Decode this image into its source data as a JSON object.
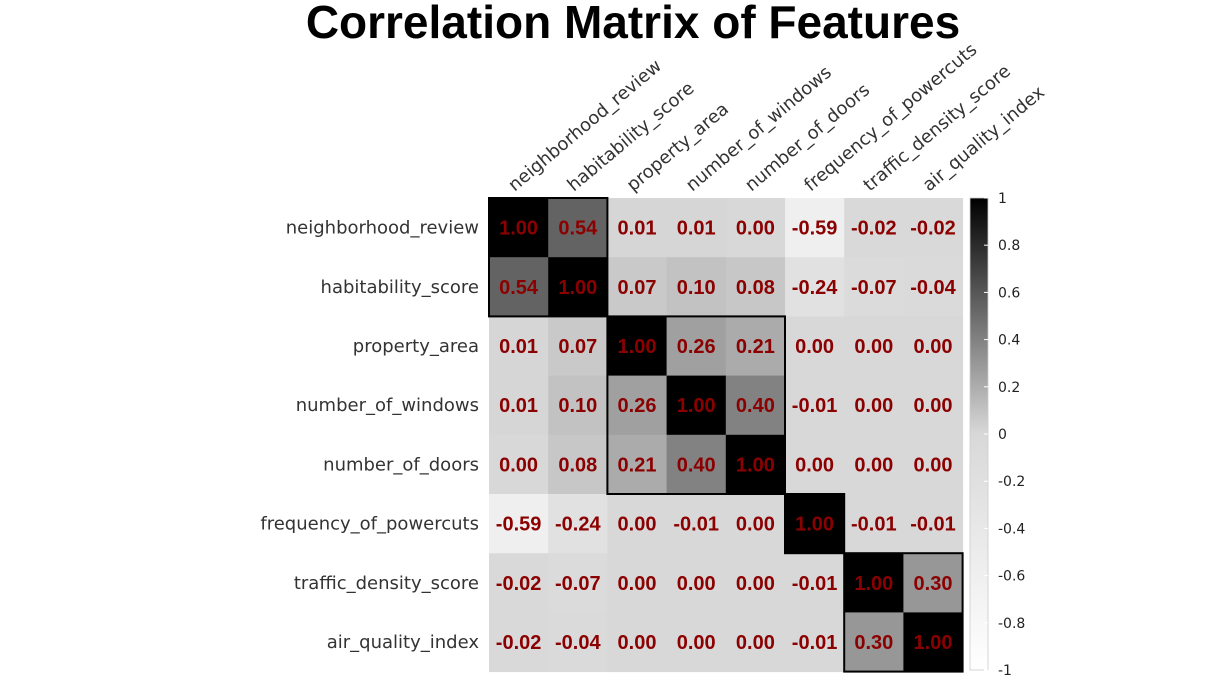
{
  "chart_data": {
    "type": "heatmap",
    "title": "Correlation Matrix of Features",
    "labels": [
      "neighborhood_review",
      "habitability_score",
      "property_area",
      "number_of_windows",
      "number_of_doors",
      "frequency_of_powercuts",
      "traffic_density_score",
      "air_quality_index"
    ],
    "values": [
      [
        1.0,
        0.54,
        0.01,
        0.01,
        0.0,
        -0.59,
        -0.02,
        -0.02
      ],
      [
        0.54,
        1.0,
        0.07,
        0.1,
        0.08,
        -0.24,
        -0.07,
        -0.04
      ],
      [
        0.01,
        0.07,
        1.0,
        0.26,
        0.21,
        0.0,
        0.0,
        0.0
      ],
      [
        0.01,
        0.1,
        0.26,
        1.0,
        0.4,
        -0.01,
        0.0,
        0.0
      ],
      [
        0.0,
        0.08,
        0.21,
        0.4,
        1.0,
        0.0,
        0.0,
        0.0
      ],
      [
        -0.59,
        -0.24,
        0.0,
        -0.01,
        0.0,
        1.0,
        -0.01,
        -0.01
      ],
      [
        -0.02,
        -0.07,
        0.0,
        0.0,
        0.0,
        -0.01,
        1.0,
        0.3
      ],
      [
        -0.02,
        -0.04,
        0.0,
        0.0,
        0.0,
        -0.01,
        0.3,
        1.0
      ]
    ],
    "cell_text": [
      [
        "1.00",
        "0.54",
        "0.01",
        "0.01",
        "0.00",
        "-0.59",
        "-0.02",
        "-0.02"
      ],
      [
        "0.54",
        "1.00",
        "0.07",
        "0.10",
        "0.08",
        "-0.24",
        "-0.07",
        "-0.04"
      ],
      [
        "0.01",
        "0.07",
        "1.00",
        "0.26",
        "0.21",
        "0.00",
        "0.00",
        "0.00"
      ],
      [
        "0.01",
        "0.10",
        "0.26",
        "1.00",
        "0.40",
        "-0.01",
        "0.00",
        "0.00"
      ],
      [
        "0.00",
        "0.08",
        "0.21",
        "0.40",
        "1.00",
        "0.00",
        "0.00",
        "0.00"
      ],
      [
        "-0.59",
        "-0.24",
        "0.00",
        "-0.01",
        "0.00",
        "1.00",
        "-0.01",
        "-0.01"
      ],
      [
        "-0.02",
        "-0.07",
        "0.00",
        "0.00",
        "0.00",
        "-0.01",
        "1.00",
        "0.30"
      ],
      [
        "-0.02",
        "-0.04",
        "0.00",
        "0.00",
        "0.00",
        "-0.01",
        "0.30",
        "1.00"
      ]
    ],
    "clusters": [
      {
        "start": 0,
        "end": 1
      },
      {
        "start": 2,
        "end": 4
      },
      {
        "start": 5,
        "end": 5
      },
      {
        "start": 6,
        "end": 7
      }
    ],
    "colorbar": {
      "range": [
        -1,
        1
      ],
      "ticks": [
        1,
        0.8,
        0.6,
        0.4,
        0.2,
        0,
        -0.2,
        -0.4,
        -0.6,
        -0.8,
        -1
      ],
      "tick_labels": [
        "1",
        "0.8",
        "0.6",
        "0.4",
        "0.2",
        "0",
        "-0.2",
        "-0.4",
        "-0.6",
        "-0.8",
        "-1"
      ],
      "low_color": "#ffffff",
      "high_color": "#000000"
    },
    "value_text_color": "#8b0000",
    "cluster_border_color": "#000000"
  }
}
